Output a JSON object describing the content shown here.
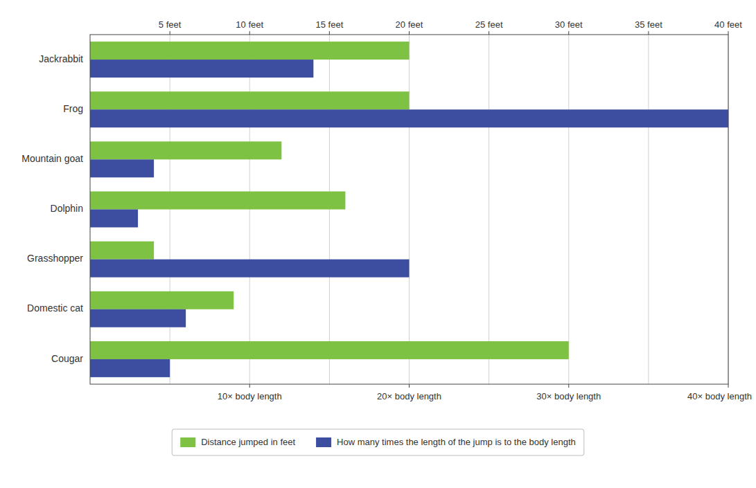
{
  "chart_data": {
    "type": "bar",
    "orientation": "horizontal",
    "categories": [
      "Cougar",
      "Domestic cat",
      "Grasshopper",
      "Dolphin",
      "Mountain goat",
      "Frog",
      "Jackrabbit"
    ],
    "series": [
      {
        "name": "Distance jumped in feet",
        "color": "#7dc242",
        "values": [
          30,
          9,
          4,
          16,
          12,
          20,
          20
        ]
      },
      {
        "name": "How many times the length of the jump is to the body length",
        "color": "#3d4ea1",
        "axis": "x2",
        "values": [
          5,
          6,
          20,
          3,
          4,
          40,
          14
        ]
      }
    ],
    "xlim": [
      0,
      40
    ],
    "xticks": [
      {
        "value": 5,
        "label": "5 feet"
      },
      {
        "value": 10,
        "label": "10 feet"
      },
      {
        "value": 15,
        "label": "15 feet"
      },
      {
        "value": 20,
        "label": "20 feet"
      },
      {
        "value": 25,
        "label": "25 feet"
      },
      {
        "value": 30,
        "label": "30 feet"
      },
      {
        "value": 35,
        "label": "35 feet"
      },
      {
        "value": 40,
        "label": "40 feet"
      }
    ],
    "x2lim": [
      0,
      40
    ],
    "x2ticks": [
      {
        "value": 10,
        "label": "10× body length"
      },
      {
        "value": 20,
        "label": "20× body length"
      },
      {
        "value": 30,
        "label": "30× body length"
      },
      {
        "value": 40,
        "label": "40× body length"
      }
    ],
    "grid": true,
    "legend": "bottom"
  }
}
